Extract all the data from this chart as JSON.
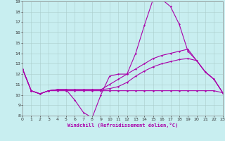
{
  "background_color": "#c8eef0",
  "grid_color": "#aacccc",
  "line_color": "#aa00aa",
  "xlabel": "Windchill (Refroidissement éolien,°C)",
  "xlim": [
    0,
    23
  ],
  "ylim": [
    8,
    19
  ],
  "xticks": [
    0,
    1,
    2,
    3,
    4,
    5,
    6,
    7,
    8,
    9,
    10,
    11,
    12,
    13,
    14,
    15,
    16,
    17,
    18,
    19,
    20,
    21,
    22,
    23
  ],
  "yticks": [
    8,
    9,
    10,
    11,
    12,
    13,
    14,
    15,
    16,
    17,
    18,
    19
  ],
  "series": [
    [
      12.5,
      10.4,
      10.1,
      10.4,
      10.5,
      10.5,
      9.5,
      8.3,
      7.8,
      10.0,
      11.8,
      12.0,
      12.0,
      14.0,
      16.7,
      19.2,
      19.2,
      18.5,
      16.8,
      14.2,
      13.3,
      12.2,
      11.5,
      10.2
    ],
    [
      12.5,
      10.4,
      10.1,
      10.4,
      10.5,
      10.5,
      10.5,
      10.5,
      10.5,
      10.5,
      11.0,
      11.5,
      12.0,
      12.5,
      13.0,
      13.5,
      13.8,
      14.0,
      14.2,
      14.4,
      13.3,
      12.2,
      11.5,
      10.2
    ],
    [
      12.5,
      10.4,
      10.1,
      10.4,
      10.5,
      10.5,
      10.5,
      10.5,
      10.5,
      10.5,
      10.6,
      10.8,
      11.2,
      11.8,
      12.3,
      12.7,
      13.0,
      13.2,
      13.4,
      13.5,
      13.3,
      12.2,
      11.5,
      10.2
    ],
    [
      12.5,
      10.4,
      10.1,
      10.4,
      10.4,
      10.4,
      10.4,
      10.4,
      10.4,
      10.4,
      10.4,
      10.4,
      10.4,
      10.4,
      10.4,
      10.4,
      10.4,
      10.4,
      10.4,
      10.4,
      10.4,
      10.4,
      10.4,
      10.2
    ]
  ]
}
